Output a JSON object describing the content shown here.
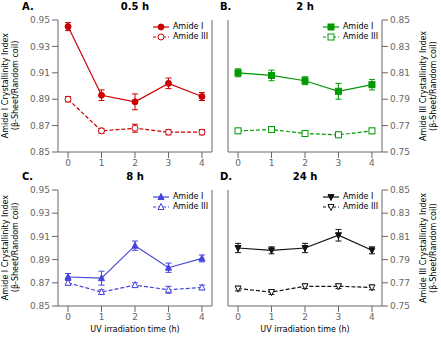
{
  "chart_data": [
    {
      "type": "line",
      "title": "0.5 h",
      "annotations": [
        "A."
      ],
      "x": [
        0,
        1,
        2,
        3,
        4
      ],
      "xlim": [
        -0.3,
        4.3
      ],
      "xticks": [
        0,
        1,
        2,
        3,
        4
      ],
      "ylim": [
        0.85,
        0.95
      ],
      "yticks": [
        0.85,
        0.87,
        0.89,
        0.91,
        0.93,
        0.95
      ],
      "y2lim": [
        0.75,
        0.85
      ],
      "ylabel": "Amide I Crystallinity Index\n(β-Sheet/Random coil)",
      "legend": "upper right",
      "grid": false,
      "series": [
        {
          "name": "Amide I",
          "color": "#cc0000",
          "marker": "o",
          "line_style": "solid",
          "values": [
            0.945,
            0.893,
            0.888,
            0.902,
            0.892
          ],
          "errors": [
            0.003,
            0.004,
            0.006,
            0.004,
            0.003
          ]
        },
        {
          "name": "Amide III",
          "axis": "y2",
          "color": "#cc0000",
          "marker": "o",
          "line_style": "dashed",
          "values": [
            0.79,
            0.766,
            0.768,
            0.765,
            0.765
          ],
          "errors": [
            0.002,
            0.002,
            0.003,
            0.002,
            0.002
          ]
        }
      ]
    },
    {
      "type": "line",
      "title": "2 h",
      "annotations": [
        "B."
      ],
      "x": [
        0,
        1,
        2,
        3,
        4
      ],
      "xlim": [
        -0.3,
        4.3
      ],
      "xticks": [
        0,
        1,
        2,
        3,
        4
      ],
      "ylim": [
        0.85,
        0.95
      ],
      "y2lim": [
        0.75,
        0.85
      ],
      "y2ticks": [
        0.75,
        0.77,
        0.79,
        0.81,
        0.83,
        0.85
      ],
      "y2label": "Amide III Crystallinity Index\n(β-Sheet/Random coil)",
      "legend": "upper right",
      "grid": false,
      "series": [
        {
          "name": "Amide I",
          "color": "#009900",
          "marker": "s",
          "line_style": "solid",
          "values": [
            0.91,
            0.908,
            0.904,
            0.896,
            0.901
          ],
          "errors": [
            0.003,
            0.004,
            0.003,
            0.006,
            0.004
          ]
        },
        {
          "name": "Amide III",
          "axis": "y2",
          "color": "#009900",
          "marker": "s",
          "line_style": "dashed",
          "values": [
            0.766,
            0.767,
            0.764,
            0.763,
            0.766
          ],
          "errors": [
            0.002,
            0.002,
            0.001,
            0.002,
            0.002
          ]
        }
      ]
    },
    {
      "type": "line",
      "title": "8 h",
      "annotations": [
        "C."
      ],
      "x": [
        0,
        1,
        2,
        3,
        4
      ],
      "xlim": [
        -0.3,
        4.3
      ],
      "xticks": [
        0,
        1,
        2,
        3,
        4
      ],
      "ylim": [
        0.85,
        0.95
      ],
      "yticks": [
        0.85,
        0.87,
        0.89,
        0.91,
        0.93,
        0.95
      ],
      "y2lim": [
        0.75,
        0.85
      ],
      "xlabel": "UV irradiation time (h)",
      "ylabel": "Amide I Crystallinity Index\n(β-Sheet/Random coil)",
      "legend": "upper right",
      "grid": false,
      "series": [
        {
          "name": "Amide I",
          "color": "#4444dd",
          "marker": "^",
          "line_style": "solid",
          "values": [
            0.875,
            0.874,
            0.902,
            0.883,
            0.891
          ],
          "errors": [
            0.003,
            0.006,
            0.004,
            0.004,
            0.003
          ]
        },
        {
          "name": "Amide III",
          "axis": "y2",
          "color": "#4444dd",
          "marker": "^",
          "line_style": "dashed",
          "values": [
            0.77,
            0.762,
            0.768,
            0.764,
            0.766
          ],
          "errors": [
            0.002,
            0.002,
            0.002,
            0.003,
            0.002
          ]
        }
      ]
    },
    {
      "type": "line",
      "title": "24 h",
      "annotations": [
        "D."
      ],
      "x": [
        0,
        1,
        2,
        3,
        4
      ],
      "xlim": [
        -0.3,
        4.3
      ],
      "xticks": [
        0,
        1,
        2,
        3,
        4
      ],
      "ylim": [
        0.85,
        0.95
      ],
      "y2lim": [
        0.75,
        0.85
      ],
      "y2ticks": [
        0.75,
        0.77,
        0.79,
        0.81,
        0.83,
        0.85
      ],
      "xlabel": "UV irradiation time (h)",
      "y2label": "Amide III Crystallinity Index\n(β-Sheet/Random coil)",
      "legend": "upper right",
      "grid": false,
      "series": [
        {
          "name": "Amide I",
          "color": "#111111",
          "marker": "v",
          "line_style": "solid",
          "values": [
            0.9,
            0.898,
            0.9,
            0.911,
            0.898
          ],
          "errors": [
            0.004,
            0.003,
            0.004,
            0.005,
            0.003
          ]
        },
        {
          "name": "Amide III",
          "axis": "y2",
          "color": "#111111",
          "marker": "v",
          "line_style": "dashed",
          "values": [
            0.765,
            0.762,
            0.767,
            0.767,
            0.766
          ],
          "errors": [
            0.002,
            0.002,
            0.002,
            0.002,
            0.002
          ]
        }
      ]
    }
  ]
}
